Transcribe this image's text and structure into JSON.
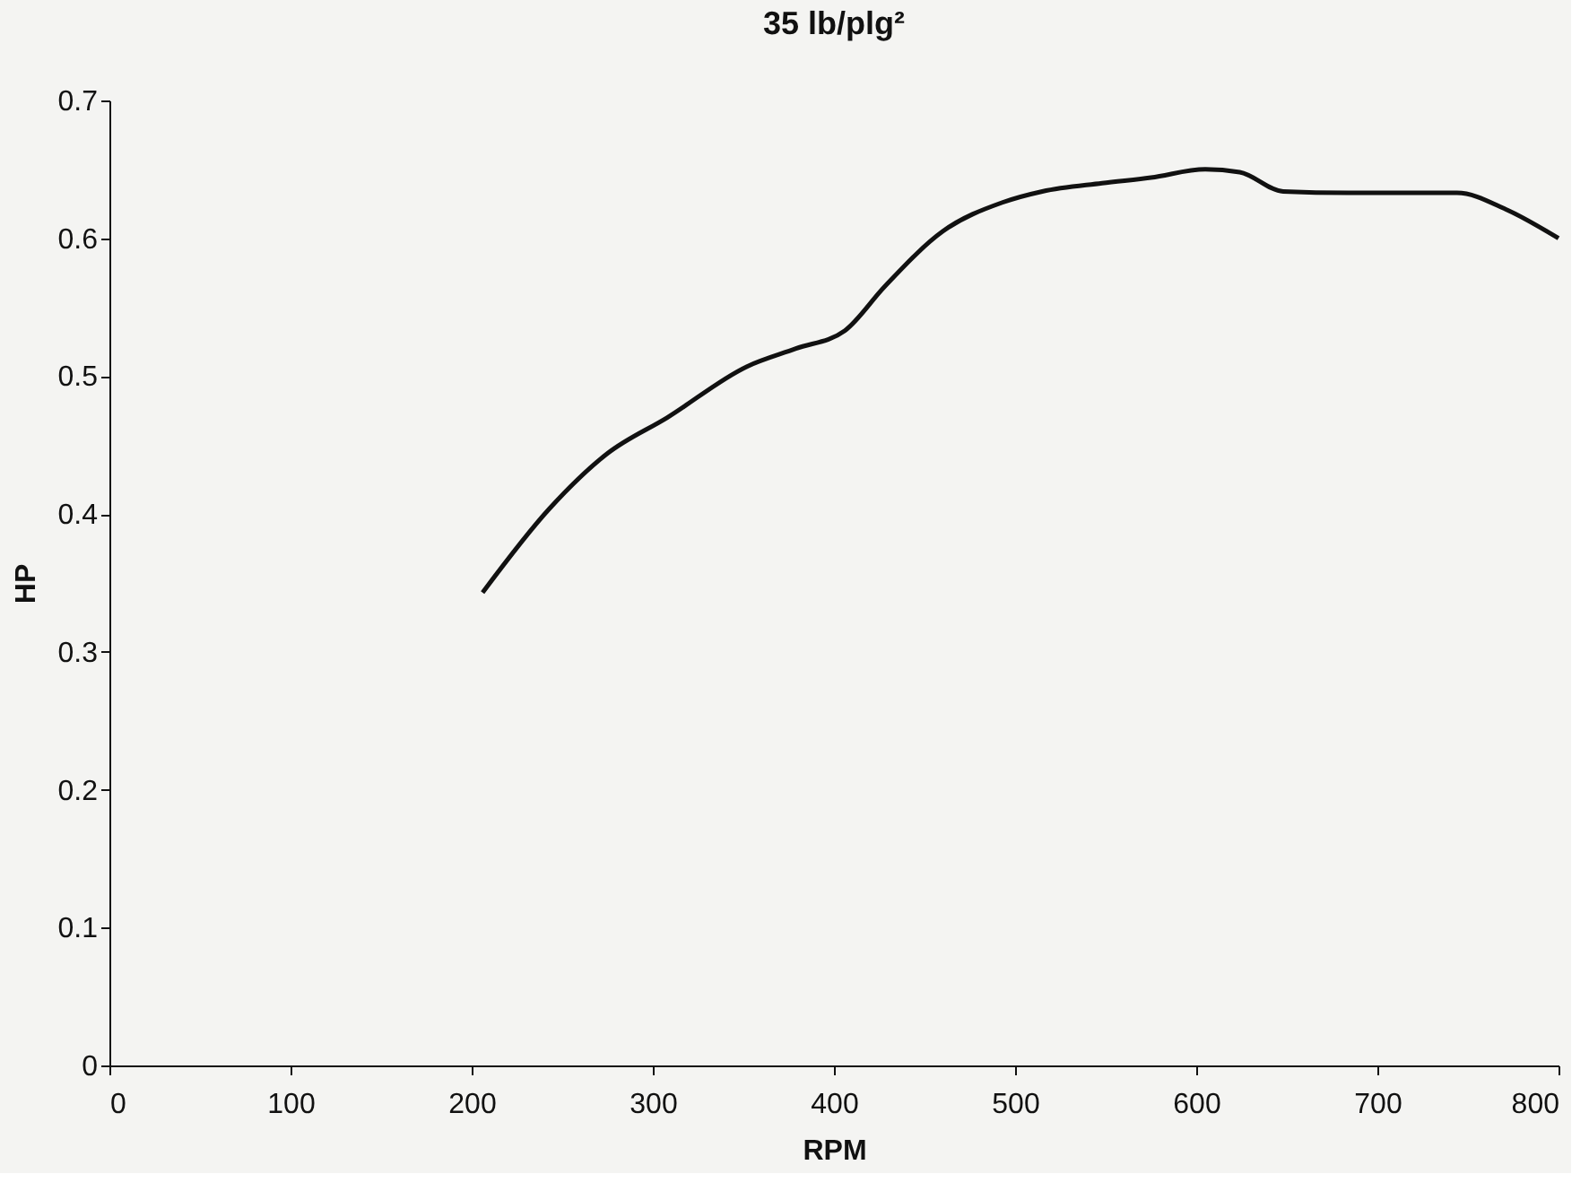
{
  "chart_data": {
    "type": "line",
    "title": "35 lb/plg²",
    "xlabel": "RPM",
    "ylabel": "HP",
    "x": [
      206,
      243,
      275,
      308,
      352,
      379,
      406,
      428,
      460,
      493,
      515,
      548,
      575,
      605,
      624,
      648,
      684,
      744,
      771,
      800
    ],
    "series": [
      {
        "color": "#111111",
        "values": [
          0.343,
          0.404,
          0.444,
          0.47,
          0.507,
          0.52,
          0.533,
          0.565,
          0.605,
          0.626,
          0.634,
          0.64,
          0.644,
          0.65,
          0.648,
          0.634,
          0.633,
          0.633,
          0.621,
          0.6
        ]
      }
    ],
    "xlim": [
      0,
      800
    ],
    "xticks": [
      0,
      100,
      200,
      300,
      400,
      500,
      600,
      700,
      800
    ],
    "ylim": [
      0,
      0.7
    ],
    "yticks": [
      0,
      0.1,
      0.2,
      0.3,
      0.4,
      0.5,
      0.6,
      0.7
    ],
    "grid": false,
    "legend": false,
    "marker": "none",
    "line_style": "solid"
  }
}
